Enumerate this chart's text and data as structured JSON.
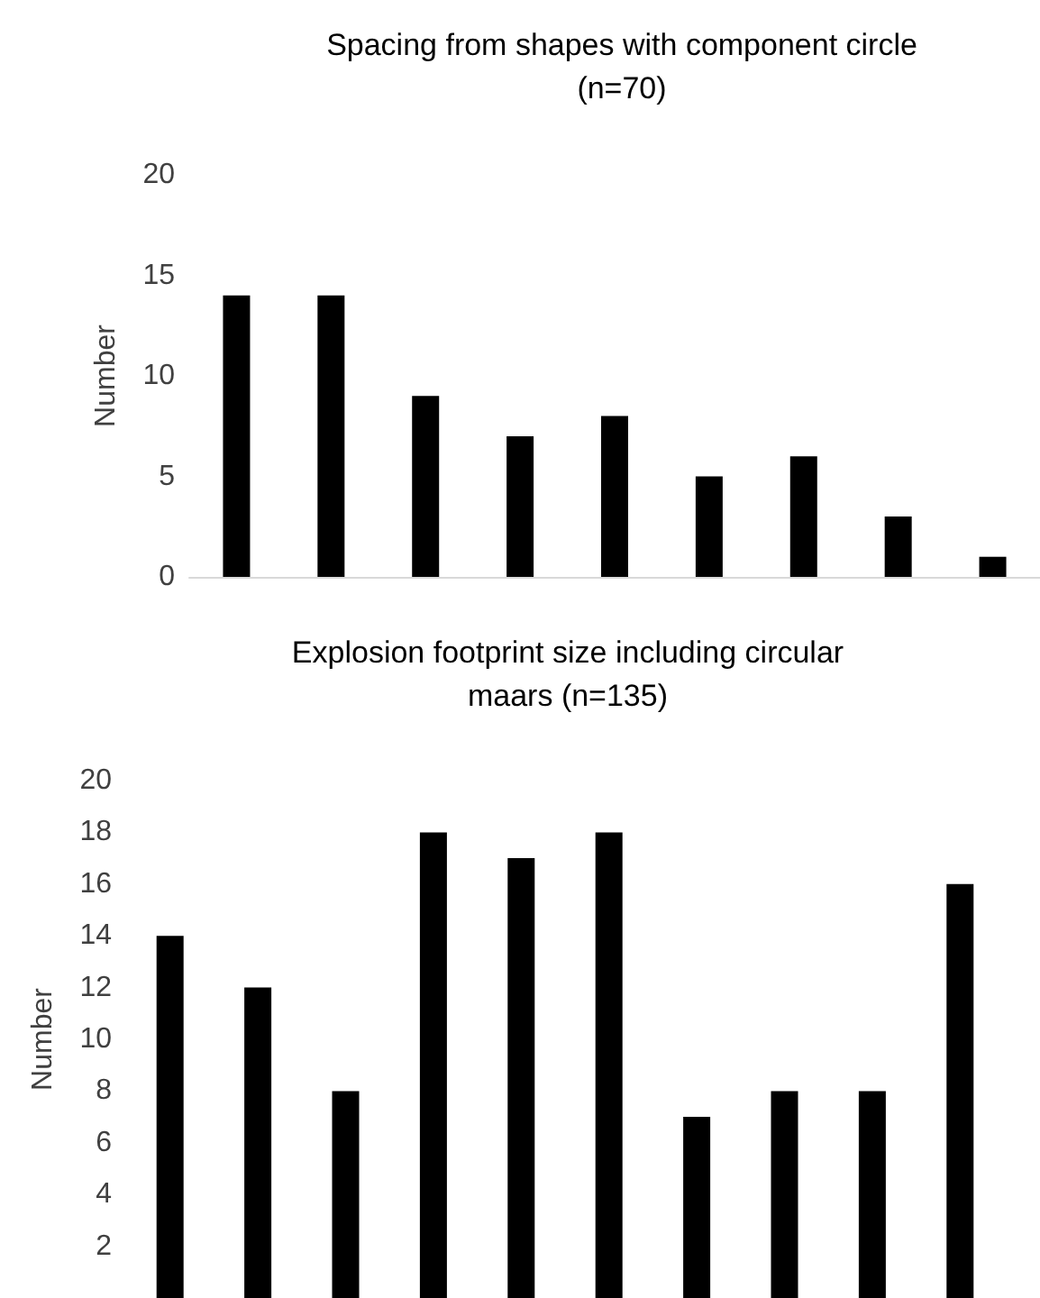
{
  "chart_data": [
    {
      "type": "bar",
      "title": "Spacing from shapes with component circle\n(n=70)",
      "ylabel": "Number",
      "categories": [
        null,
        null,
        null,
        null,
        null,
        null,
        null,
        null,
        null
      ],
      "values": [
        14,
        14,
        9,
        7,
        8,
        5,
        6,
        3,
        1
      ],
      "color": "#000000",
      "ylim": [
        0,
        20
      ],
      "yticks": [
        0,
        5,
        10,
        15,
        20
      ],
      "grid": false,
      "tick_labels": "y"
    },
    {
      "type": "bar",
      "title": "Explosion footprint size including circular\nmaars (n=135)",
      "ylabel": "Number",
      "categories": [
        null,
        null,
        null,
        null,
        null,
        null,
        null,
        null,
        null,
        null
      ],
      "values": [
        14,
        12,
        8,
        18,
        17,
        18,
        7,
        8,
        8,
        16
      ],
      "color": "#000000",
      "ylim": [
        0,
        20
      ],
      "yticks": [
        2,
        4,
        6,
        8,
        10,
        12,
        14,
        16,
        18,
        20
      ],
      "grid": false,
      "tick_labels": "y"
    }
  ]
}
